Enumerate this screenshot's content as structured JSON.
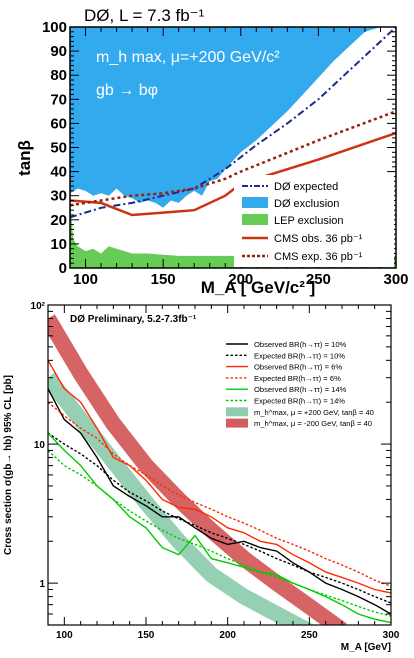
{
  "chart_data": [
    {
      "type": "area",
      "title": "DØ, L = 7.3 fb⁻¹",
      "annotations": [
        "m_h max, μ=+200 GeV/c²",
        "gb → bφ"
      ],
      "xlabel": "M_A  [ GeV/c² ]",
      "ylabel": "tanβ",
      "xlim": [
        90,
        300
      ],
      "ylim": [
        0,
        100
      ],
      "x_ticks": [
        100,
        150,
        200,
        250,
        300
      ],
      "y_ticks": [
        0,
        10,
        20,
        30,
        40,
        50,
        60,
        70,
        80,
        90,
        100
      ],
      "legend_position": "bottom-right",
      "colors": {
        "d0_expected": "#1a2a8a",
        "d0_exclusion": "#33aaee",
        "lep_exclusion": "#66cc55",
        "cms_obs": "#cc3311",
        "cms_exp": "#992211"
      },
      "series": [
        {
          "name": "DØ expected",
          "style": "dash-dot",
          "x": [
            90,
            110,
            130,
            150,
            170,
            190,
            210,
            230,
            250,
            270,
            290,
            300
          ],
          "y": [
            21,
            25,
            27,
            30,
            33,
            41,
            51,
            60,
            70,
            82,
            94,
            100
          ]
        },
        {
          "name": "DØ exclusion",
          "style": "fill",
          "x": [
            90,
            95,
            100,
            105,
            110,
            115,
            120,
            125,
            130,
            135,
            140,
            145,
            150,
            155,
            160,
            165,
            170,
            175,
            180,
            185,
            190,
            200,
            210,
            220,
            230,
            240,
            250,
            260,
            270,
            280,
            290
          ],
          "y": [
            31,
            33,
            32,
            30,
            31,
            30,
            33,
            30,
            29,
            27,
            28,
            27,
            25,
            28,
            27,
            30,
            32,
            30,
            36,
            37,
            41,
            48,
            53,
            59,
            65,
            72,
            79,
            86,
            92,
            98,
            100
          ]
        },
        {
          "name": "LEP exclusion",
          "style": "fill",
          "x": [
            90,
            92,
            95,
            100,
            105,
            110,
            115,
            120,
            130,
            140,
            150,
            160,
            170,
            180,
            200,
            250,
            300
          ],
          "y": [
            30,
            12,
            9,
            7,
            8,
            6,
            9,
            8,
            6,
            6,
            5.5,
            5,
            5,
            5,
            5,
            5,
            5
          ]
        },
        {
          "name": "CMS obs. 36 pb⁻¹",
          "style": "solid",
          "x": [
            90,
            110,
            130,
            150,
            170,
            190,
            200,
            250,
            300
          ],
          "y": [
            28,
            27,
            22,
            23,
            24,
            30,
            35,
            45,
            56
          ]
        },
        {
          "name": "CMS exp. 36 pb⁻¹",
          "style": "dotted",
          "x": [
            90,
            110,
            130,
            150,
            170,
            190,
            200,
            250,
            300
          ],
          "y": [
            26,
            28,
            30,
            31,
            33,
            37,
            40,
            53,
            65
          ]
        }
      ]
    },
    {
      "type": "line",
      "title": "DØ Preliminary, 5.2-7.3fb⁻¹",
      "xlabel": "M_A [GeV]",
      "ylabel": "Cross section σ(gb→ hb) 95% CL [pb]",
      "xscale": "linear",
      "yscale": "log",
      "xlim": [
        90,
        300
      ],
      "ylim": [
        0.5,
        100
      ],
      "x_ticks": [
        100,
        150,
        200,
        250,
        300
      ],
      "y_ticks": [
        1,
        10,
        100
      ],
      "y_tick_labels": [
        "1",
        "10",
        "10²"
      ],
      "legend_position": "top-right",
      "series": [
        {
          "name": "Observed BR(h→ττ) = 10%",
          "color": "#000000",
          "style": "solid",
          "x": [
            90,
            100,
            110,
            120,
            130,
            140,
            150,
            160,
            170,
            180,
            190,
            200,
            210,
            220,
            230,
            240,
            250,
            260,
            270,
            280,
            290,
            300
          ],
          "y": [
            25,
            15,
            12,
            8,
            5,
            4.2,
            3.6,
            3.0,
            3.0,
            2.5,
            2.1,
            1.9,
            2.0,
            1.8,
            1.7,
            1.4,
            1.2,
            1.0,
            0.9,
            0.8,
            0.7,
            0.6
          ]
        },
        {
          "name": "Expected BR(h→ττ) = 10%",
          "color": "#000000",
          "style": "dotted",
          "x": [
            90,
            100,
            110,
            120,
            130,
            140,
            150,
            160,
            170,
            180,
            190,
            200,
            210,
            220,
            230,
            240,
            250,
            260,
            270,
            280,
            290,
            300
          ],
          "y": [
            12,
            10,
            8.5,
            7,
            5.5,
            4.5,
            3.9,
            3.3,
            2.9,
            2.6,
            2.3,
            2.1,
            1.9,
            1.7,
            1.5,
            1.35,
            1.2,
            1.1,
            1.0,
            0.9,
            0.8,
            0.72
          ]
        },
        {
          "name": "Observed BR(h→ττ) = 6%",
          "color": "#ff2a00",
          "style": "solid",
          "x": [
            90,
            100,
            110,
            120,
            130,
            140,
            150,
            160,
            170,
            180,
            190,
            200,
            210,
            220,
            230,
            240,
            250,
            260,
            270,
            280,
            290,
            300
          ],
          "y": [
            40,
            25,
            20,
            13,
            8,
            7,
            5.5,
            4,
            3.5,
            3.4,
            3.0,
            2.5,
            2.3,
            2.0,
            1.9,
            1.6,
            1.4,
            1.2,
            1.1,
            1.0,
            0.9,
            0.85
          ]
        },
        {
          "name": "Expected BR(h→ττ) = 6%",
          "color": "#ff2a00",
          "style": "dotted",
          "x": [
            90,
            100,
            110,
            120,
            130,
            140,
            150,
            160,
            170,
            180,
            190,
            200,
            210,
            220,
            230,
            240,
            250,
            260,
            270,
            280,
            290,
            300
          ],
          "y": [
            20,
            16,
            13,
            11,
            8.5,
            7,
            6,
            5,
            4.3,
            3.8,
            3.4,
            3.0,
            2.7,
            2.4,
            2.1,
            1.9,
            1.7,
            1.5,
            1.35,
            1.2,
            1.05,
            0.95
          ]
        },
        {
          "name": "Observed BR(h→ττ) = 14%",
          "color": "#00cc00",
          "style": "solid",
          "x": [
            90,
            100,
            110,
            120,
            130,
            140,
            150,
            160,
            170,
            180,
            190,
            200,
            210,
            220,
            230,
            240,
            250,
            260,
            270,
            280,
            290,
            300
          ],
          "y": [
            12,
            9,
            7,
            5,
            4,
            3,
            2.5,
            1.8,
            1.6,
            2.2,
            1.5,
            1.4,
            1.3,
            1.2,
            1.15,
            1.0,
            0.9,
            0.8,
            0.7,
            0.6,
            0.55,
            0.52
          ]
        },
        {
          "name": "Expected BR(h→ττ) = 14%",
          "color": "#00cc00",
          "style": "dotted",
          "x": [
            90,
            100,
            110,
            120,
            130,
            140,
            150,
            160,
            170,
            180,
            190,
            200,
            210,
            220,
            230,
            240,
            250,
            260,
            270,
            280,
            290,
            300
          ],
          "y": [
            9,
            7,
            6,
            5,
            4,
            3.3,
            2.8,
            2.4,
            2.1,
            1.9,
            1.7,
            1.5,
            1.35,
            1.2,
            1.1,
            1.0,
            0.9,
            0.82,
            0.75,
            0.68,
            0.62,
            0.58
          ]
        },
        {
          "name": "m_h^max, μ = +200 GeV, tanβ = 40",
          "color": "#8fcdae",
          "style": "band",
          "x": [
            90,
            110,
            130,
            150,
            170,
            190,
            210,
            230,
            250
          ],
          "y": [
            30,
            15,
            7.5,
            3.8,
            2.0,
            1.15,
            0.8,
            0.6,
            0.45
          ]
        },
        {
          "name": "m_h^max, μ = -200 GeV, tanβ = 40",
          "color": "#d45c5c",
          "style": "band",
          "x": [
            90,
            110,
            130,
            150,
            170,
            190,
            210,
            230,
            250,
            270
          ],
          "y": [
            80,
            32,
            14,
            7,
            4,
            2.4,
            1.5,
            1.0,
            0.68,
            0.46
          ]
        }
      ]
    }
  ]
}
